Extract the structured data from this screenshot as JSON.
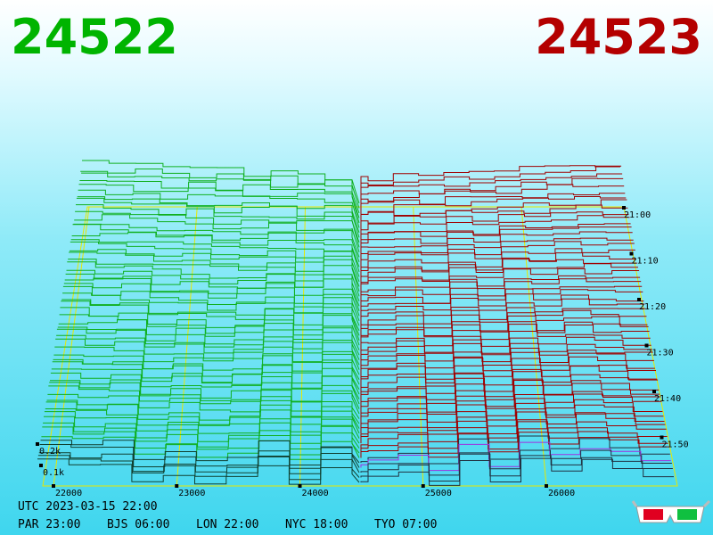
{
  "header": {
    "bid": "24522",
    "ask": "24523"
  },
  "axis": {
    "price_ticks": [
      22000,
      23000,
      24000,
      25000,
      26000
    ],
    "depth_ticks": [
      "0.2k",
      "0.1k"
    ],
    "time_ticks": [
      "21:00",
      "21:10",
      "21:20",
      "21:30",
      "21:40",
      "21:50"
    ]
  },
  "footer": {
    "utc": "UTC 2023-03-15 22:00",
    "clocks": [
      "PAR 23:00",
      "BJS 06:00",
      "LON 22:00",
      "NYC 18:00",
      "TYO 07:00"
    ]
  }
}
